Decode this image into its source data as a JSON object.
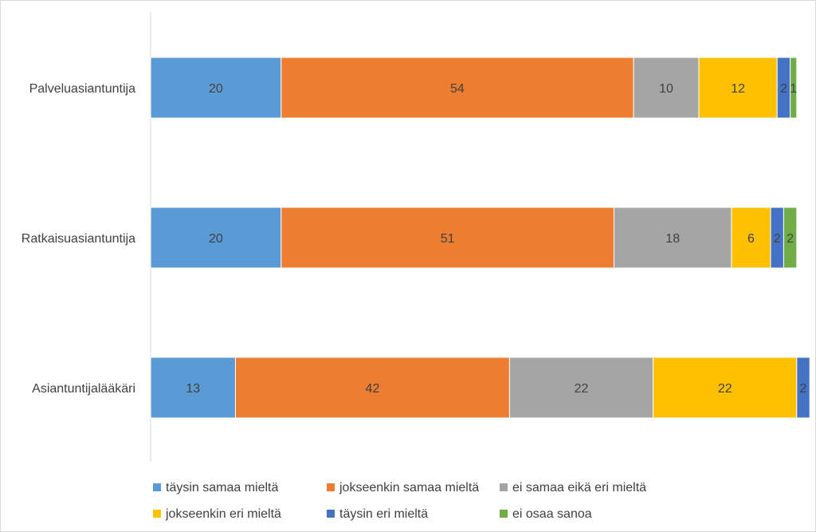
{
  "chart_data": {
    "type": "bar",
    "orientation": "horizontal",
    "stacked": true,
    "title": "",
    "xlabel": "",
    "ylabel": "",
    "xlim": [
      0,
      100
    ],
    "grid": false,
    "legend_position": "bottom",
    "categories": [
      "Palveluasiantuntija",
      "Ratkaisuasiantuntija",
      "Asiantuntijalääkäri"
    ],
    "series": [
      {
        "name": "täysin samaa mieltä",
        "color": "#5B9BD5",
        "values": [
          20,
          20,
          13
        ]
      },
      {
        "name": "jokseenkin samaa mieltä",
        "color": "#ED7D31",
        "values": [
          54,
          51,
          42
        ]
      },
      {
        "name": "ei samaa eikä eri mieltä",
        "color": "#A5A5A5",
        "values": [
          10,
          18,
          22
        ]
      },
      {
        "name": "jokseenkin eri mieltä",
        "color": "#FFC000",
        "values": [
          12,
          6,
          22
        ]
      },
      {
        "name": "täysin eri mieltä",
        "color": "#4472C4",
        "values": [
          2,
          2,
          2
        ]
      },
      {
        "name": "ei osaa sanoa",
        "color": "#70AD47",
        "values": [
          1,
          2,
          0
        ]
      }
    ]
  }
}
